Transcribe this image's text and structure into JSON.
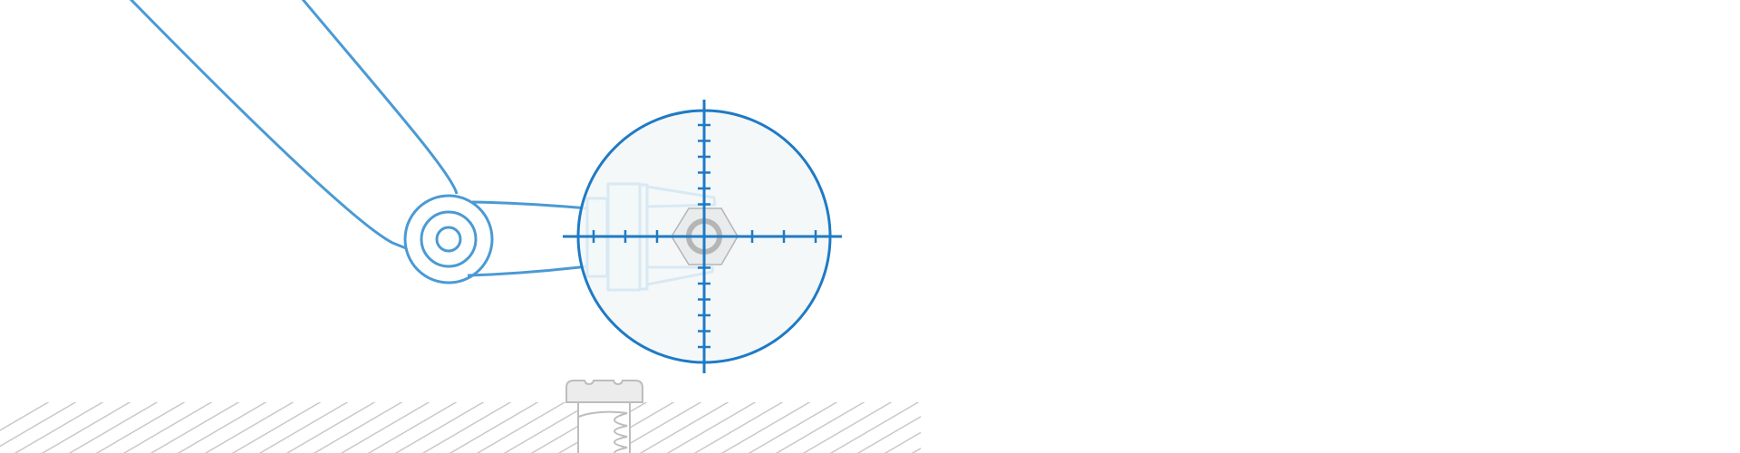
{
  "colors": {
    "background": "#ffffff",
    "arm_stroke": "#4a9ad4",
    "reticle_stroke": "#1f7ac4",
    "reticle_fill": "#f2f7f8",
    "hatch": "#c9c9c9",
    "screw_stroke": "#bdbdbd",
    "screw_fill": "#ececec",
    "nut_stroke": "#b5b5b5",
    "nut_fill": "#e8ecec"
  },
  "icons": {
    "arm": "robot-arm-icon",
    "reticle": "crosshair-icon",
    "nut": "hex-nut-icon",
    "screw": "screw-icon",
    "ground": "hatched-ground-icon"
  }
}
